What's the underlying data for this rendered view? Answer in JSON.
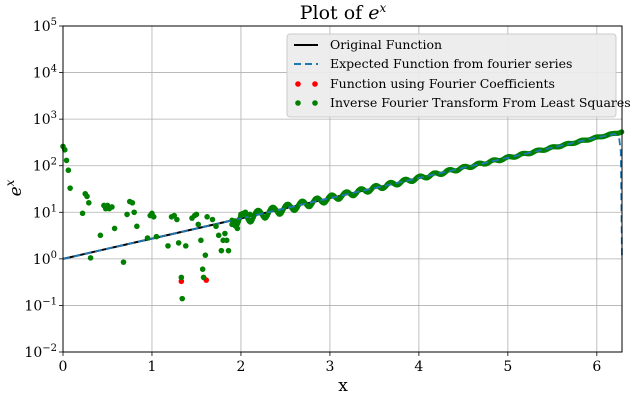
{
  "chart_data": {
    "type": "line",
    "title": {
      "prefix": "Plot of ",
      "base": "e",
      "sup": "x"
    },
    "xlabel": "x",
    "ylabel": {
      "base": "e",
      "sup": "x"
    },
    "xlim": [
      0,
      6.283
    ],
    "ylim_log10": [
      -2,
      5
    ],
    "yscale": "log",
    "grid": true,
    "legend_position": "top-right",
    "x_ticks": [
      {
        "value": 0,
        "label": "0"
      },
      {
        "value": 1,
        "label": "1"
      },
      {
        "value": 2,
        "label": "2"
      },
      {
        "value": 3,
        "label": "3"
      },
      {
        "value": 4,
        "label": "4"
      },
      {
        "value": 5,
        "label": "5"
      },
      {
        "value": 6,
        "label": "6"
      }
    ],
    "y_ticks": [
      {
        "exp": -2,
        "label_base": "10",
        "label_exp": "−2"
      },
      {
        "exp": -1,
        "label_base": "10",
        "label_exp": "−1"
      },
      {
        "exp": 0,
        "label_base": "10",
        "label_exp": "0"
      },
      {
        "exp": 1,
        "label_base": "10",
        "label_exp": "1"
      },
      {
        "exp": 2,
        "label_base": "10",
        "label_exp": "2"
      },
      {
        "exp": 3,
        "label_base": "10",
        "label_exp": "3"
      },
      {
        "exp": 4,
        "label_base": "10",
        "label_exp": "4"
      },
      {
        "exp": 5,
        "label_base": "10",
        "label_exp": "5"
      }
    ],
    "series": [
      {
        "name": "Original Function",
        "style": "solid-line",
        "color": "#000000"
      },
      {
        "name": "Expected Function from fourier series",
        "style": "dashed-line",
        "color": "#1f77b4"
      },
      {
        "name": "Function using Fourier Coefficients",
        "style": "markers",
        "color": "#ff0000"
      },
      {
        "name": "Inverse Fourier Transform From Least Squares",
        "style": "markers",
        "color": "#008000"
      }
    ],
    "original_function": {
      "x": [
        0,
        0.5,
        1,
        1.5,
        2,
        2.5,
        3,
        3.5,
        4,
        4.5,
        5,
        5.5,
        6,
        6.283
      ],
      "y": [
        1,
        1.65,
        2.72,
        4.48,
        7.39,
        12.18,
        20.09,
        33.12,
        54.6,
        90.02,
        148.41,
        244.69,
        403.43,
        535.49
      ]
    },
    "expected_fourier": {
      "x": [
        0,
        0.5,
        1,
        1.5,
        2,
        2.5,
        3,
        3.5,
        4,
        4.5,
        5,
        5.5,
        6,
        6.2,
        6.25,
        6.27,
        6.283
      ],
      "y": [
        1,
        1.65,
        2.72,
        4.48,
        7.39,
        12.18,
        20.09,
        33.12,
        54.6,
        90.02,
        148.41,
        244.69,
        403.43,
        480,
        400,
        200,
        1
      ]
    },
    "fourier_coefficient_points": {
      "x": [
        1.33,
        1.61
      ],
      "y": [
        0.33,
        0.35
      ]
    },
    "least_squares_points": {
      "x": [
        0,
        0.02,
        0.04,
        0.06,
        0.08,
        0.22,
        0.25,
        0.27,
        0.29,
        0.31,
        0.42,
        0.46,
        0.48,
        0.5,
        0.52,
        0.55,
        0.58,
        0.68,
        0.72,
        0.75,
        0.78,
        0.8,
        0.83,
        0.95,
        0.98,
        1.0,
        1.02,
        1.05,
        1.18,
        1.22,
        1.25,
        1.28,
        1.3,
        1.33,
        1.34,
        1.38,
        1.45,
        1.48,
        1.5,
        1.52,
        1.55,
        1.57,
        1.58,
        1.6,
        1.62,
        1.68,
        1.72,
        1.75,
        1.78,
        1.8,
        1.82,
        1.84,
        1.86,
        1.9,
        1.93,
        1.96,
        2.0,
        2.05,
        2.1
      ],
      "y": [
        260,
        220,
        130,
        80,
        33,
        9.5,
        25,
        22,
        16,
        1.05,
        3.2,
        14,
        12,
        14,
        12,
        13,
        4.5,
        0.85,
        9,
        17,
        16,
        10,
        5,
        2.8,
        8.5,
        9.5,
        8,
        3,
        1.9,
        8,
        8.5,
        7,
        2.2,
        0.4,
        0.14,
        1.9,
        7.5,
        8.5,
        9,
        5.5,
        2.5,
        0.6,
        0.4,
        1.2,
        8,
        7,
        5,
        3.2,
        1.5,
        2.5,
        3.5,
        2.5,
        1.5,
        5.5,
        6.5,
        4.5,
        9,
        10,
        9
      ]
    }
  }
}
